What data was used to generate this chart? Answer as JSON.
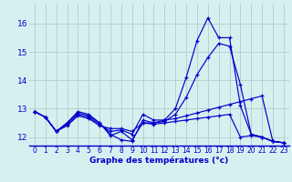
{
  "xlabel": "Graphe des températures (°c)",
  "background_color": "#d6f0f0",
  "grid_color": "#b8d0d0",
  "line_color": "#0000cc",
  "xlim": [
    -0.5,
    23.5
  ],
  "ylim": [
    11.7,
    16.7
  ],
  "xticks": [
    0,
    1,
    2,
    3,
    4,
    5,
    6,
    7,
    8,
    9,
    10,
    11,
    12,
    13,
    14,
    15,
    16,
    17,
    18,
    19,
    20,
    21,
    22,
    23
  ],
  "yticks": [
    12,
    13,
    14,
    15,
    16
  ],
  "series": [
    {
      "x": [
        0,
        1,
        2,
        3,
        4,
        5,
        6,
        7,
        8,
        9,
        10,
        11,
        12,
        13,
        14,
        15,
        16,
        17,
        18,
        19,
        20,
        21,
        22,
        23
      ],
      "y": [
        12.9,
        12.7,
        12.2,
        12.5,
        12.9,
        12.8,
        12.5,
        12.1,
        11.9,
        11.85,
        12.6,
        12.5,
        12.6,
        13.0,
        14.1,
        15.4,
        16.2,
        15.5,
        15.5,
        13.1,
        12.1,
        12.0,
        11.85,
        11.8
      ]
    },
    {
      "x": [
        0,
        1,
        2,
        3,
        4,
        5,
        6,
        7,
        8,
        9,
        10,
        11,
        12,
        13,
        14,
        15,
        16,
        17,
        18,
        19,
        20,
        21,
        22,
        23
      ],
      "y": [
        12.9,
        12.7,
        12.2,
        12.5,
        12.85,
        12.75,
        12.5,
        12.05,
        12.2,
        11.9,
        12.5,
        12.5,
        12.55,
        12.8,
        13.4,
        14.2,
        14.8,
        15.3,
        15.2,
        13.85,
        12.1,
        12.0,
        11.85,
        11.8
      ]
    },
    {
      "x": [
        0,
        1,
        2,
        3,
        4,
        5,
        6,
        7,
        8,
        9,
        10,
        11,
        12,
        13,
        14,
        15,
        16,
        17,
        18,
        19,
        20,
        21,
        22,
        23
      ],
      "y": [
        12.9,
        12.7,
        12.2,
        12.45,
        12.8,
        12.7,
        12.45,
        12.2,
        12.25,
        12.1,
        12.8,
        12.6,
        12.6,
        12.65,
        12.75,
        12.85,
        12.95,
        13.05,
        13.15,
        13.25,
        13.35,
        13.45,
        11.85,
        11.8
      ]
    },
    {
      "x": [
        0,
        1,
        2,
        3,
        4,
        5,
        6,
        7,
        8,
        9,
        10,
        11,
        12,
        13,
        14,
        15,
        16,
        17,
        18,
        19,
        20,
        21,
        22,
        23
      ],
      "y": [
        12.9,
        12.7,
        12.2,
        12.4,
        12.75,
        12.65,
        12.4,
        12.3,
        12.3,
        12.2,
        12.5,
        12.45,
        12.5,
        12.55,
        12.6,
        12.65,
        12.7,
        12.75,
        12.8,
        12.0,
        12.05,
        12.0,
        11.85,
        11.8
      ]
    }
  ]
}
